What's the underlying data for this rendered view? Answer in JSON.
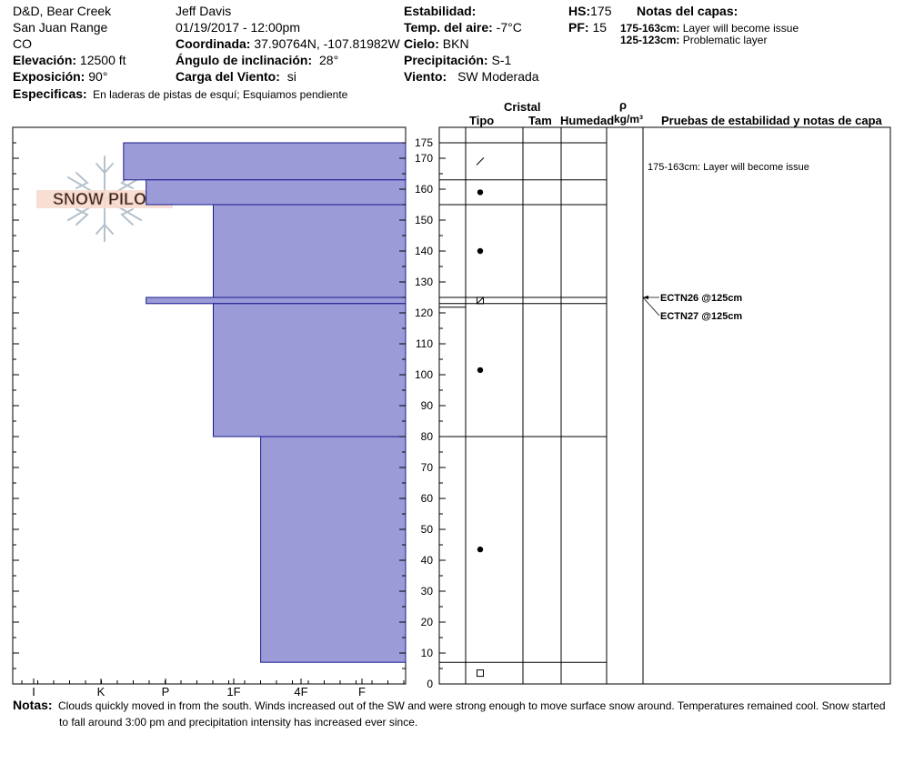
{
  "header": {
    "location": "D&D, Bear Creek",
    "range": "San Juan Range",
    "state": "CO",
    "observer": "Jeff Davis",
    "datetime": "01/19/2017 - 12:00pm",
    "elevation_label": "Elevación:",
    "elevation_value": "12500 ft",
    "aspect_label": "Exposición:",
    "aspect_value": "90°",
    "coord_label": "Coordinada:",
    "coord_value": "37.90764N, -107.81982W",
    "slope_label": "Ángulo de inclinación:",
    "slope_value": "28°",
    "wind_load_label": "Carga del Viento:",
    "wind_load_value": "si",
    "specifics_label": "Especificas:",
    "specifics_value": "En laderas de pistas de esquí; Esquiamos pendiente",
    "stability_label": "Estabilidad:",
    "air_temp_label": "Temp. del aire:",
    "air_temp_value": "-7°C",
    "sky_label": "Cielo:",
    "sky_value": "BKN",
    "precip_label": "Precipitación:",
    "precip_value": "S-1",
    "wind_label": "Viento:",
    "wind_value": "SW Moderada",
    "hs_label": "HS:",
    "hs_value": "175",
    "pf_label": "PF:",
    "pf_value": "15",
    "layer_notes_title": "Notas del capas:",
    "layer_note1_range": "175-163cm:",
    "layer_note1_text": "Layer will become issue",
    "layer_note2_range": "125-123cm:",
    "layer_note2_text": "Problematic layer"
  },
  "logo": {
    "text": "SNOW PILOT"
  },
  "table_headers": {
    "cristal": "Cristal",
    "tipo": "Tipo",
    "tam": "Tam",
    "humedad": "Humedad",
    "rho": "ρ",
    "density_unit": "kg/m³",
    "tests": "Pruebas de estabilidad y notas de capa"
  },
  "layer_comment": "175-163cm:  Layer will become issue",
  "tests": [
    {
      "label": "ECTN26 @125cm",
      "depth": 125
    },
    {
      "label": "ECTN27 @125cm",
      "depth": 125
    }
  ],
  "notes_label": "Notas:",
  "notes_text1": "Clouds quickly moved in from the south. Winds increased out of the SW and were strong enough to move surface snow around. Temperatures remained cool. Snow started",
  "notes_text2": "to fall around 3:00 pm and precipitation intensity has increased ever since.",
  "colors": {
    "hardness_fill": "#9b9bd8",
    "hardness_stroke": "#1a1a8c"
  },
  "chart_data": {
    "type": "bar",
    "title": "",
    "xlabel": "",
    "ylabel": "",
    "ylim": [
      0,
      175
    ],
    "hardness_scale": [
      "I",
      "K",
      "P",
      "1F",
      "4F",
      "F"
    ],
    "y_ticks": [
      0,
      10,
      20,
      30,
      40,
      50,
      60,
      70,
      80,
      90,
      100,
      110,
      120,
      130,
      140,
      150,
      160,
      170,
      175
    ],
    "layers": [
      {
        "top": 175,
        "bottom": 163,
        "hardness": 1.35,
        "grain": "precip-particles"
      },
      {
        "top": 163,
        "bottom": 155,
        "hardness": 1.7,
        "grain": "rounds"
      },
      {
        "top": 155,
        "bottom": 125,
        "hardness": 2.7,
        "grain": "rounds"
      },
      {
        "top": 125,
        "bottom": 123,
        "hardness": 1.7,
        "grain": "faceted-rounds"
      },
      {
        "top": 123,
        "bottom": 80,
        "hardness": 2.7,
        "grain": "rounds"
      },
      {
        "top": 80,
        "bottom": 7,
        "hardness": 3.4,
        "grain": "rounds"
      },
      {
        "top": 7,
        "bottom": 0,
        "hardness": 0,
        "grain": "facets"
      }
    ]
  }
}
